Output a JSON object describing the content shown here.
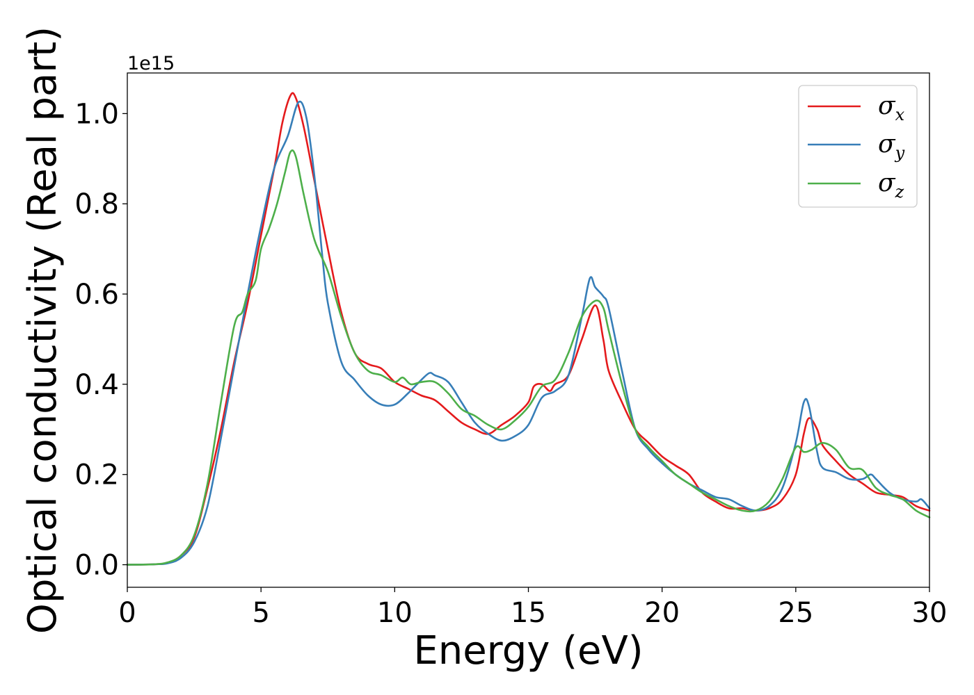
{
  "chart_data": {
    "type": "line",
    "title": "",
    "xlabel": "Energy (eV)",
    "ylabel": "Optical conductivity (Real part)",
    "y_offset_text": "1e15",
    "xlim": [
      0,
      30
    ],
    "ylim": [
      -0.05,
      1.09
    ],
    "x_ticks": [
      "0",
      "5",
      "10",
      "15",
      "20",
      "25",
      "30"
    ],
    "y_ticks": [
      "0.0",
      "0.2",
      "0.4",
      "0.6",
      "0.8",
      "1.0"
    ],
    "grid": false,
    "legend_position": "top-right",
    "series": [
      {
        "name": "σx",
        "name_base": "σ",
        "name_sub": "x",
        "color": "#e41a1c",
        "points": [
          [
            0,
            0
          ],
          [
            1,
            0.001
          ],
          [
            1.5,
            0.004
          ],
          [
            2,
            0.02
          ],
          [
            2.5,
            0.06
          ],
          [
            3,
            0.17
          ],
          [
            3.5,
            0.3
          ],
          [
            4,
            0.45
          ],
          [
            4.5,
            0.58
          ],
          [
            5,
            0.73
          ],
          [
            5.5,
            0.88
          ],
          [
            5.8,
            0.98
          ],
          [
            6.1,
            1.04
          ],
          [
            6.3,
            1.035
          ],
          [
            6.6,
            0.97
          ],
          [
            7,
            0.85
          ],
          [
            7.5,
            0.7
          ],
          [
            8,
            0.56
          ],
          [
            8.5,
            0.47
          ],
          [
            9,
            0.445
          ],
          [
            9.5,
            0.435
          ],
          [
            10,
            0.405
          ],
          [
            10.5,
            0.39
          ],
          [
            11,
            0.375
          ],
          [
            11.5,
            0.365
          ],
          [
            12,
            0.34
          ],
          [
            12.5,
            0.315
          ],
          [
            13,
            0.3
          ],
          [
            13.5,
            0.29
          ],
          [
            14,
            0.31
          ],
          [
            14.5,
            0.33
          ],
          [
            15,
            0.36
          ],
          [
            15.2,
            0.395
          ],
          [
            15.5,
            0.4
          ],
          [
            15.8,
            0.385
          ],
          [
            16,
            0.4
          ],
          [
            16.5,
            0.42
          ],
          [
            17,
            0.5
          ],
          [
            17.5,
            0.575
          ],
          [
            17.8,
            0.5
          ],
          [
            18,
            0.43
          ],
          [
            18.5,
            0.36
          ],
          [
            19,
            0.3
          ],
          [
            19.5,
            0.27
          ],
          [
            20,
            0.24
          ],
          [
            20.5,
            0.22
          ],
          [
            21,
            0.2
          ],
          [
            21.5,
            0.16
          ],
          [
            22,
            0.14
          ],
          [
            22.5,
            0.125
          ],
          [
            23,
            0.125
          ],
          [
            23.5,
            0.12
          ],
          [
            24,
            0.125
          ],
          [
            24.5,
            0.145
          ],
          [
            25,
            0.2
          ],
          [
            25.3,
            0.29
          ],
          [
            25.5,
            0.325
          ],
          [
            25.8,
            0.3
          ],
          [
            26,
            0.265
          ],
          [
            26.5,
            0.23
          ],
          [
            27,
            0.2
          ],
          [
            27.5,
            0.18
          ],
          [
            28,
            0.16
          ],
          [
            28.5,
            0.155
          ],
          [
            29,
            0.15
          ],
          [
            29.5,
            0.13
          ],
          [
            30,
            0.12
          ]
        ]
      },
      {
        "name": "σy",
        "name_base": "σ",
        "name_sub": "y",
        "color": "#377eb8",
        "points": [
          [
            0,
            0
          ],
          [
            1,
            0.001
          ],
          [
            1.5,
            0.003
          ],
          [
            2,
            0.015
          ],
          [
            2.5,
            0.05
          ],
          [
            3,
            0.13
          ],
          [
            3.5,
            0.28
          ],
          [
            4,
            0.44
          ],
          [
            4.5,
            0.6
          ],
          [
            5,
            0.75
          ],
          [
            5.5,
            0.88
          ],
          [
            6,
            0.95
          ],
          [
            6.4,
            1.025
          ],
          [
            6.7,
            0.99
          ],
          [
            7,
            0.86
          ],
          [
            7.3,
            0.68
          ],
          [
            7.5,
            0.58
          ],
          [
            8,
            0.45
          ],
          [
            8.5,
            0.41
          ],
          [
            9,
            0.375
          ],
          [
            9.5,
            0.355
          ],
          [
            10,
            0.355
          ],
          [
            10.5,
            0.38
          ],
          [
            11,
            0.41
          ],
          [
            11.3,
            0.425
          ],
          [
            11.5,
            0.42
          ],
          [
            12,
            0.405
          ],
          [
            12.5,
            0.36
          ],
          [
            13,
            0.315
          ],
          [
            13.5,
            0.29
          ],
          [
            14,
            0.275
          ],
          [
            14.5,
            0.285
          ],
          [
            15,
            0.31
          ],
          [
            15.5,
            0.37
          ],
          [
            16,
            0.385
          ],
          [
            16.5,
            0.42
          ],
          [
            17,
            0.55
          ],
          [
            17.3,
            0.635
          ],
          [
            17.5,
            0.615
          ],
          [
            17.8,
            0.595
          ],
          [
            18,
            0.57
          ],
          [
            18.5,
            0.43
          ],
          [
            19,
            0.3
          ],
          [
            19.5,
            0.255
          ],
          [
            20,
            0.225
          ],
          [
            20.5,
            0.2
          ],
          [
            21,
            0.18
          ],
          [
            21.5,
            0.165
          ],
          [
            22,
            0.15
          ],
          [
            22.5,
            0.145
          ],
          [
            23,
            0.13
          ],
          [
            23.5,
            0.12
          ],
          [
            24,
            0.13
          ],
          [
            24.5,
            0.17
          ],
          [
            25,
            0.27
          ],
          [
            25.3,
            0.36
          ],
          [
            25.5,
            0.35
          ],
          [
            25.8,
            0.25
          ],
          [
            26,
            0.215
          ],
          [
            26.5,
            0.205
          ],
          [
            27,
            0.19
          ],
          [
            27.5,
            0.19
          ],
          [
            27.8,
            0.2
          ],
          [
            28,
            0.19
          ],
          [
            28.5,
            0.16
          ],
          [
            29,
            0.145
          ],
          [
            29.5,
            0.14
          ],
          [
            29.7,
            0.145
          ],
          [
            30,
            0.125
          ]
        ]
      },
      {
        "name": "σz",
        "name_base": "σ",
        "name_sub": "z",
        "color": "#4daf4a",
        "points": [
          [
            0,
            0
          ],
          [
            1,
            0.001
          ],
          [
            1.5,
            0.005
          ],
          [
            2,
            0.02
          ],
          [
            2.5,
            0.065
          ],
          [
            3,
            0.18
          ],
          [
            3.5,
            0.36
          ],
          [
            4,
            0.53
          ],
          [
            4.3,
            0.56
          ],
          [
            4.5,
            0.6
          ],
          [
            4.8,
            0.63
          ],
          [
            5,
            0.7
          ],
          [
            5.3,
            0.745
          ],
          [
            5.6,
            0.8
          ],
          [
            5.9,
            0.87
          ],
          [
            6.1,
            0.915
          ],
          [
            6.3,
            0.905
          ],
          [
            6.6,
            0.82
          ],
          [
            7,
            0.72
          ],
          [
            7.5,
            0.65
          ],
          [
            8,
            0.55
          ],
          [
            8.5,
            0.47
          ],
          [
            9,
            0.43
          ],
          [
            9.5,
            0.42
          ],
          [
            10,
            0.405
          ],
          [
            10.3,
            0.415
          ],
          [
            10.6,
            0.4
          ],
          [
            11,
            0.405
          ],
          [
            11.5,
            0.405
          ],
          [
            12,
            0.38
          ],
          [
            12.5,
            0.345
          ],
          [
            13,
            0.33
          ],
          [
            13.5,
            0.31
          ],
          [
            14,
            0.3
          ],
          [
            14.5,
            0.32
          ],
          [
            15,
            0.35
          ],
          [
            15.5,
            0.395
          ],
          [
            16,
            0.41
          ],
          [
            16.5,
            0.47
          ],
          [
            17,
            0.55
          ],
          [
            17.5,
            0.585
          ],
          [
            17.8,
            0.57
          ],
          [
            18,
            0.52
          ],
          [
            18.5,
            0.4
          ],
          [
            19,
            0.3
          ],
          [
            19.5,
            0.26
          ],
          [
            20,
            0.23
          ],
          [
            20.5,
            0.2
          ],
          [
            21,
            0.18
          ],
          [
            21.5,
            0.16
          ],
          [
            22,
            0.145
          ],
          [
            22.5,
            0.13
          ],
          [
            23,
            0.12
          ],
          [
            23.5,
            0.12
          ],
          [
            24,
            0.14
          ],
          [
            24.5,
            0.19
          ],
          [
            25,
            0.26
          ],
          [
            25.3,
            0.25
          ],
          [
            25.6,
            0.255
          ],
          [
            26,
            0.27
          ],
          [
            26.5,
            0.255
          ],
          [
            27,
            0.215
          ],
          [
            27.5,
            0.21
          ],
          [
            28,
            0.17
          ],
          [
            28.5,
            0.155
          ],
          [
            29,
            0.145
          ],
          [
            29.5,
            0.12
          ],
          [
            30,
            0.105
          ]
        ]
      }
    ]
  }
}
